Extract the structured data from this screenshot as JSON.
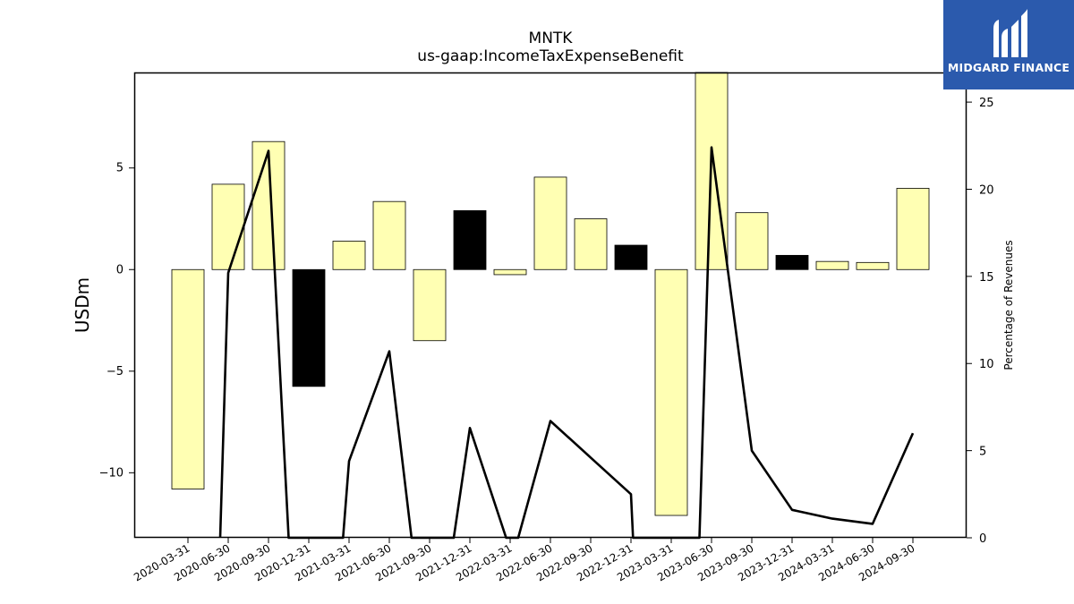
{
  "chart_data": {
    "type": "bar",
    "title": "MNTK",
    "subtitle": "us-gaap:IncomeTaxExpenseBenefit",
    "ylabel": "USDm",
    "y2label": "Percentage of Revenues",
    "ylim": [
      -13.2,
      9.7
    ],
    "y2lim": [
      0,
      26.7
    ],
    "yticks": [
      -10,
      -5,
      0,
      5
    ],
    "y2ticks": [
      0,
      5,
      10,
      15,
      20,
      25
    ],
    "categories": [
      "2020-03-31",
      "2020-06-30",
      "2020-09-30",
      "2020-12-31",
      "2021-03-31",
      "2021-06-30",
      "2021-09-30",
      "2021-12-31",
      "2022-03-31",
      "2022-06-30",
      "2022-09-30",
      "2022-12-31",
      "2023-03-31",
      "2023-06-30",
      "2023-09-30",
      "2023-12-31",
      "2024-03-31",
      "2024-06-30",
      "2024-09-30"
    ],
    "series": [
      {
        "type": "bar",
        "values": [
          -10.8,
          4.2,
          6.3,
          -5.75,
          1.4,
          3.35,
          -3.5,
          2.9,
          -0.25,
          4.55,
          2.5,
          1.2,
          -12.1,
          10.3,
          2.8,
          0.7,
          0.4,
          0.35,
          4.0
        ],
        "colors": [
          "#ffffb3",
          "#ffffb3",
          "#ffffb3",
          "#000000",
          "#ffffb3",
          "#ffffb3",
          "#ffffb3",
          "#000000",
          "#ffffb3",
          "#ffffb3",
          "#ffffb3",
          "#000000",
          "#ffffb3",
          "#ffffb3",
          "#ffffb3",
          "#000000",
          "#ffffb3",
          "#ffffb3",
          "#ffffb3"
        ]
      },
      {
        "type": "line",
        "axis": "right",
        "color": "#000000",
        "x": [
          0.8,
          1.0,
          2.0,
          2.5,
          3.85,
          4.0,
          5.0,
          5.55,
          6.6,
          7.0,
          7.9,
          8.2,
          9.0,
          10.0,
          11.0,
          11.05,
          12.7,
          13.0,
          14.0,
          15.0,
          16.0,
          17.0,
          18.0
        ],
        "values": [
          0,
          15.2,
          22.2,
          0,
          0,
          4.4,
          10.7,
          0,
          0,
          6.3,
          0,
          0,
          6.7,
          4.6,
          2.5,
          0,
          0,
          22.4,
          5.0,
          1.6,
          1.1,
          0.8,
          6.0
        ]
      }
    ]
  },
  "branding": {
    "logo_text": "MIDGARD FINANCE",
    "logo_color": "#2b5aad"
  }
}
